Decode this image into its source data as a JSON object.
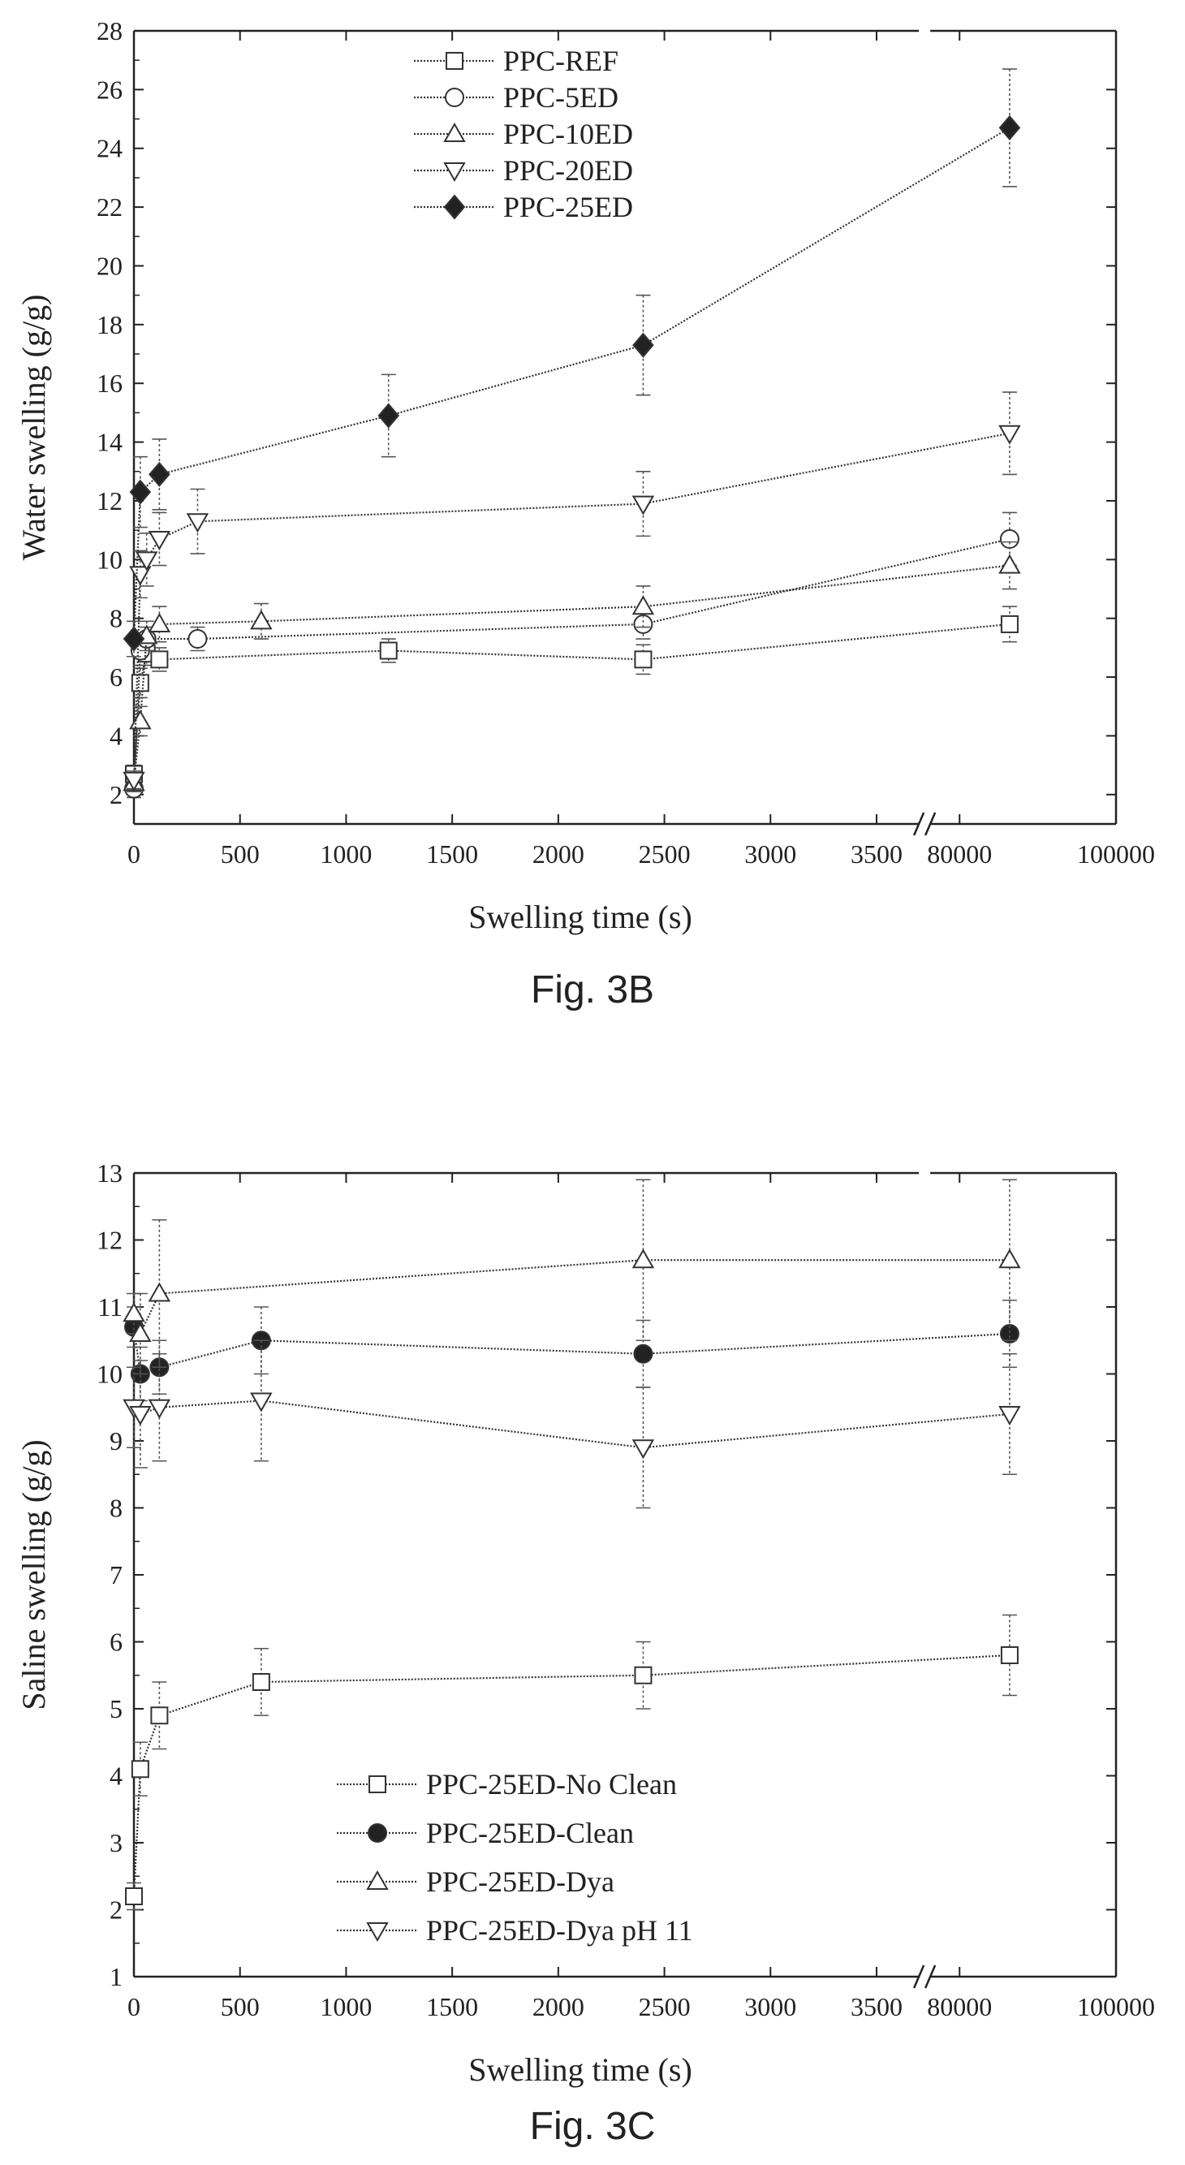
{
  "chart_data": [
    {
      "type": "line",
      "caption": "Fig. 3B",
      "xlabel": "Swelling time (s)",
      "ylabel": "Water swelling (g/g)",
      "ylim": [
        1,
        28
      ],
      "yticks": [
        2,
        4,
        6,
        8,
        10,
        12,
        14,
        16,
        18,
        20,
        22,
        24,
        26,
        28
      ],
      "xticks": [
        "0",
        "500",
        "1000",
        "1500",
        "2000",
        "2500",
        "3000",
        "3500",
        "80000",
        "100000"
      ],
      "x_axis_break": "between 3500 and 80000",
      "legend_position": "top-center",
      "series": [
        {
          "name": "PPC-REF",
          "marker": "square",
          "filled": false,
          "points": [
            [
              0,
              2.7
            ],
            [
              30,
              5.8
            ],
            [
              60,
              6.8
            ],
            [
              120,
              6.6
            ],
            [
              1200,
              6.9
            ],
            [
              2400,
              6.6
            ],
            [
              86400,
              7.8
            ]
          ],
          "errors": [
            0.3,
            0.5,
            0.4,
            0.4,
            0.4,
            0.5,
            0.6
          ]
        },
        {
          "name": "PPC-5ED",
          "marker": "circle",
          "filled": false,
          "points": [
            [
              0,
              2.2
            ],
            [
              30,
              6.9
            ],
            [
              60,
              7.3
            ],
            [
              300,
              7.3
            ],
            [
              2400,
              7.8
            ],
            [
              86400,
              10.7
            ]
          ],
          "errors": [
            0.3,
            0.5,
            0.4,
            0.4,
            0.5,
            0.9
          ]
        },
        {
          "name": "PPC-10ED",
          "marker": "triangle-up",
          "filled": false,
          "points": [
            [
              0,
              2.4
            ],
            [
              30,
              4.5
            ],
            [
              60,
              7.4
            ],
            [
              120,
              7.8
            ],
            [
              600,
              7.9
            ],
            [
              2400,
              8.4
            ],
            [
              86400,
              9.8
            ]
          ],
          "errors": [
            0.3,
            0.5,
            0.5,
            0.6,
            0.6,
            0.7,
            0.8
          ]
        },
        {
          "name": "PPC-20ED",
          "marker": "triangle-down",
          "filled": false,
          "points": [
            [
              0,
              2.5
            ],
            [
              30,
              9.5
            ],
            [
              60,
              10.0
            ],
            [
              120,
              10.7
            ],
            [
              300,
              11.3
            ],
            [
              2400,
              11.9
            ],
            [
              86400,
              14.3
            ]
          ],
          "errors": [
            0.3,
            0.8,
            0.9,
            0.9,
            1.1,
            1.1,
            1.4
          ]
        },
        {
          "name": "PPC-25ED",
          "marker": "diamond",
          "filled": true,
          "points": [
            [
              0,
              7.3
            ],
            [
              30,
              12.3
            ],
            [
              120,
              12.9
            ],
            [
              1200,
              14.9
            ],
            [
              2400,
              17.3
            ],
            [
              86400,
              24.7
            ]
          ],
          "errors": [
            0.6,
            1.2,
            1.2,
            1.4,
            1.7,
            2.0
          ]
        }
      ]
    },
    {
      "type": "line",
      "caption": "Fig. 3C",
      "xlabel": "Swelling time (s)",
      "ylabel": "Saline swelling (g/g)",
      "ylim": [
        1,
        13
      ],
      "yticks": [
        1,
        2,
        3,
        4,
        5,
        6,
        7,
        8,
        9,
        10,
        11,
        12,
        13
      ],
      "xticks": [
        "0",
        "500",
        "1000",
        "1500",
        "2000",
        "2500",
        "3000",
        "3500",
        "80000",
        "100000"
      ],
      "x_axis_break": "between 3500 and 80000",
      "legend_position": "bottom-center",
      "series": [
        {
          "name": "PPC-25ED-No Clean",
          "marker": "square",
          "filled": false,
          "points": [
            [
              0,
              2.2
            ],
            [
              30,
              4.1
            ],
            [
              120,
              4.9
            ],
            [
              600,
              5.4
            ],
            [
              2400,
              5.5
            ],
            [
              86400,
              5.8
            ]
          ],
          "errors": [
            0.2,
            0.4,
            0.5,
            0.5,
            0.5,
            0.6
          ]
        },
        {
          "name": "PPC-25ED-Clean",
          "marker": "circle",
          "filled": true,
          "points": [
            [
              0,
              10.7
            ],
            [
              30,
              10.0
            ],
            [
              120,
              10.1
            ],
            [
              600,
              10.5
            ],
            [
              2400,
              10.3
            ],
            [
              86400,
              10.6
            ]
          ],
          "errors": [
            0.3,
            0.4,
            0.4,
            0.5,
            0.5,
            0.5
          ]
        },
        {
          "name": "PPC-25ED-Dya",
          "marker": "triangle-up",
          "filled": false,
          "points": [
            [
              0,
              10.9
            ],
            [
              30,
              10.6
            ],
            [
              120,
              11.2
            ],
            [
              2400,
              11.7
            ],
            [
              86400,
              11.7
            ]
          ],
          "errors": [
            0.3,
            0.6,
            1.1,
            1.2,
            1.2
          ]
        },
        {
          "name": "PPC-25ED-Dya pH 11",
          "marker": "triangle-down",
          "filled": false,
          "points": [
            [
              0,
              9.5
            ],
            [
              30,
              9.4
            ],
            [
              120,
              9.5
            ],
            [
              600,
              9.6
            ],
            [
              2400,
              8.9
            ],
            [
              86400,
              9.4
            ]
          ],
          "errors": [
            0.6,
            0.8,
            0.8,
            0.9,
            0.9,
            0.9
          ]
        }
      ]
    }
  ]
}
